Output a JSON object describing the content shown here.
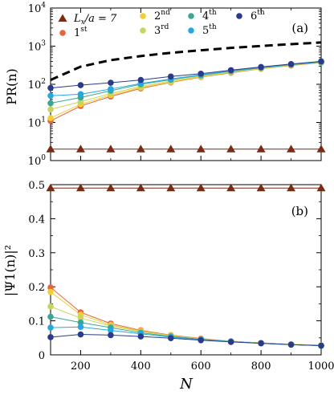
{
  "chart_data": [
    {
      "type": "line",
      "panel_label": "(a)",
      "ylabel": "PR(n)",
      "yscale": "log",
      "ylim": [
        1,
        10000
      ],
      "xlim": [
        100,
        1000
      ],
      "yticks": [
        1,
        10,
        100,
        1000,
        10000
      ],
      "ytick_labels": [
        {
          "base": "10",
          "exp": "0"
        },
        {
          "base": "10",
          "exp": "1"
        },
        {
          "base": "10",
          "exp": "2"
        },
        {
          "base": "10",
          "exp": "3"
        },
        {
          "base": "10",
          "exp": "4"
        }
      ],
      "x": [
        100,
        200,
        300,
        400,
        500,
        600,
        700,
        800,
        900,
        1000
      ],
      "reference_curve": {
        "style": "dashed",
        "color": "#000000",
        "values": [
          130,
          290,
          430,
          550,
          670,
          780,
          900,
          1010,
          1130,
          1250
        ]
      },
      "legend": {
        "placement": "top",
        "entries": [
          {
            "kind": "triangle",
            "color": "#7a2c12",
            "text_a": "L",
            "text_a_sub": "x",
            "text_b": "/a = 7"
          },
          {
            "kind": "circle",
            "color": "#e8643c",
            "num": "1",
            "sup": "st"
          },
          {
            "kind": "circle",
            "color": "#f2cf35",
            "num": "2",
            "sup": "nd"
          },
          {
            "kind": "circle",
            "color": "#c6d65a",
            "num": "3",
            "sup": "rd"
          },
          {
            "kind": "circle",
            "color": "#3aa794",
            "num": "4",
            "sup": "th"
          },
          {
            "kind": "circle",
            "color": "#26a8de",
            "num": "5",
            "sup": "th"
          },
          {
            "kind": "circle",
            "color": "#2b3b8c",
            "num": "6",
            "sup": "th"
          }
        ]
      },
      "series": [
        {
          "color": "#7a2c12",
          "marker": "triangle",
          "values": [
            2,
            2,
            2,
            2,
            2,
            2,
            2,
            2,
            2,
            2
          ]
        },
        {
          "color": "#e8643c",
          "marker": "circle",
          "values": [
            11,
            27,
            48,
            78,
            112,
            155,
            200,
            255,
            310,
            370
          ]
        },
        {
          "color": "#f2cf35",
          "marker": "circle",
          "values": [
            13,
            30,
            52,
            82,
            115,
            158,
            205,
            258,
            315,
            375
          ]
        },
        {
          "color": "#c6d65a",
          "marker": "circle",
          "values": [
            22,
            35,
            57,
            88,
            122,
            163,
            210,
            262,
            318,
            378
          ]
        },
        {
          "color": "#3aa794",
          "marker": "circle",
          "values": [
            32,
            45,
            68,
            100,
            132,
            172,
            220,
            270,
            325,
            385
          ]
        },
        {
          "color": "#26a8de",
          "marker": "circle",
          "values": [
            50,
            55,
            75,
            105,
            138,
            178,
            225,
            275,
            330,
            390
          ]
        },
        {
          "color": "#2b3b8c",
          "marker": "circle",
          "values": [
            80,
            95,
            110,
            130,
            160,
            190,
            235,
            285,
            340,
            400
          ]
        }
      ]
    },
    {
      "type": "line",
      "panel_label": "(b)",
      "ylabel": "|Ψ1(n)|²",
      "xlabel": "N",
      "ylim": [
        0,
        0.5
      ],
      "xlim": [
        100,
        1000
      ],
      "yticks": [
        0,
        0.1,
        0.2,
        0.3,
        0.4,
        0.5
      ],
      "ytick_labels": [
        "0",
        "0.1",
        "0.2",
        "0.3",
        "0.4",
        "0.5"
      ],
      "xticks": [
        200,
        400,
        600,
        800,
        1000
      ],
      "xtick_labels": [
        "200",
        "400",
        "600",
        "800",
        "1000"
      ],
      "x": [
        100,
        200,
        300,
        400,
        500,
        600,
        700,
        800,
        900,
        1000
      ],
      "series": [
        {
          "color": "#7a2c12",
          "marker": "triangle",
          "values": [
            0.49,
            0.49,
            0.49,
            0.49,
            0.49,
            0.49,
            0.49,
            0.49,
            0.49,
            0.49
          ]
        },
        {
          "color": "#e8643c",
          "marker": "circle",
          "values": [
            0.198,
            0.125,
            0.092,
            0.072,
            0.058,
            0.048,
            0.04,
            0.035,
            0.031,
            0.028
          ]
        },
        {
          "color": "#f2cf35",
          "marker": "circle",
          "values": [
            0.185,
            0.118,
            0.088,
            0.07,
            0.057,
            0.047,
            0.04,
            0.035,
            0.031,
            0.028
          ]
        },
        {
          "color": "#c6d65a",
          "marker": "circle",
          "values": [
            0.142,
            0.108,
            0.085,
            0.068,
            0.056,
            0.047,
            0.04,
            0.035,
            0.031,
            0.028
          ]
        },
        {
          "color": "#3aa794",
          "marker": "circle",
          "values": [
            0.112,
            0.095,
            0.08,
            0.065,
            0.054,
            0.046,
            0.039,
            0.034,
            0.03,
            0.027
          ]
        },
        {
          "color": "#26a8de",
          "marker": "circle",
          "values": [
            0.08,
            0.082,
            0.072,
            0.062,
            0.052,
            0.045,
            0.039,
            0.034,
            0.03,
            0.027
          ]
        },
        {
          "color": "#2b3b8c",
          "marker": "circle",
          "values": [
            0.052,
            0.06,
            0.058,
            0.054,
            0.049,
            0.043,
            0.038,
            0.034,
            0.03,
            0.027
          ]
        }
      ]
    }
  ]
}
